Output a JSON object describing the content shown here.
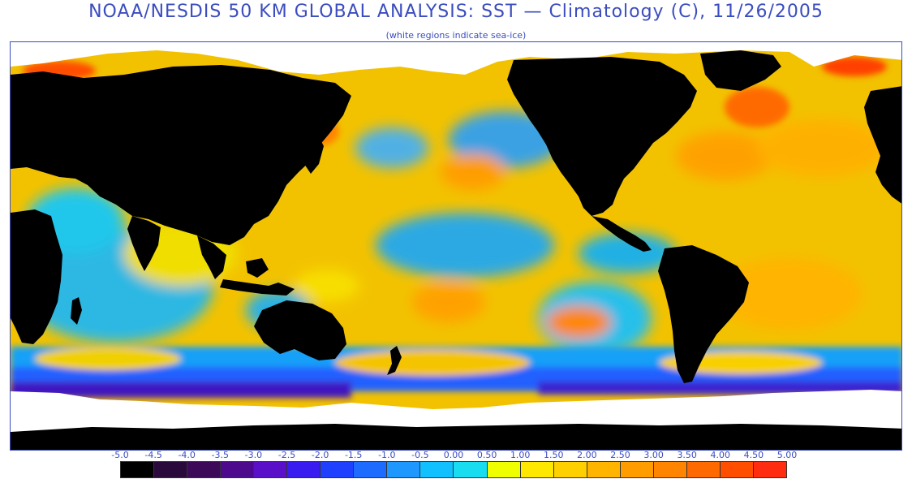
{
  "title": "NOAA/NESDIS 50 KM GLOBAL ANALYSIS: SST — Climatology (C), 11/26/2005",
  "subtitle": "(white regions indicate sea-ice)",
  "scale": {
    "labels": [
      "-5.0",
      "-4.5",
      "-4.0",
      "-3.5",
      "-3.0",
      "-2.5",
      "-2.0",
      "-1.5",
      "-1.0",
      "-0.5",
      "0.00",
      "0.50",
      "1.00",
      "1.50",
      "2.00",
      "2.50",
      "3.00",
      "3.50",
      "4.00",
      "4.50",
      "5.00"
    ],
    "colors": [
      "#000000",
      "#2a0a3c",
      "#3d0a5a",
      "#4e0a8c",
      "#5a10c8",
      "#3a1cf0",
      "#2040ff",
      "#1e6cff",
      "#1e98ff",
      "#10c0ff",
      "#18dcf0",
      "#f0ff00",
      "#ffe800",
      "#ffd000",
      "#ffb400",
      "#ff9c00",
      "#ff8400",
      "#ff6a00",
      "#ff4e00",
      "#ff2c10"
    ]
  },
  "map": {
    "land_color": "#000000",
    "ice_color": "#ffffff",
    "ocean_base_color": "#f5c400"
  }
}
